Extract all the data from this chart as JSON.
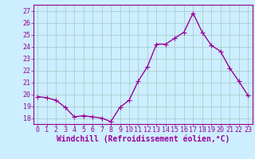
{
  "x": [
    0,
    1,
    2,
    3,
    4,
    5,
    6,
    7,
    8,
    9,
    10,
    11,
    12,
    13,
    14,
    15,
    16,
    17,
    18,
    19,
    20,
    21,
    22,
    23
  ],
  "y": [
    19.8,
    19.7,
    19.5,
    18.9,
    18.1,
    18.2,
    18.1,
    18.0,
    17.7,
    18.9,
    19.5,
    21.1,
    22.3,
    24.2,
    24.2,
    24.7,
    25.2,
    26.8,
    25.2,
    24.1,
    23.6,
    22.2,
    21.1,
    19.9
  ],
  "line_color": "#990099",
  "marker": "+",
  "marker_size": 4,
  "bg_color": "#cceeff",
  "grid_color": "#aacccc",
  "xlabel": "Windchill (Refroidissement éolien,°C)",
  "xlabel_color": "#990099",
  "tick_color": "#990099",
  "ylim": [
    17.5,
    27.5
  ],
  "xlim": [
    -0.5,
    23.5
  ],
  "yticks": [
    18,
    19,
    20,
    21,
    22,
    23,
    24,
    25,
    26,
    27
  ],
  "xticks": [
    0,
    1,
    2,
    3,
    4,
    5,
    6,
    7,
    8,
    9,
    10,
    11,
    12,
    13,
    14,
    15,
    16,
    17,
    18,
    19,
    20,
    21,
    22,
    23
  ],
  "tick_fontsize": 6,
  "xlabel_fontsize": 7,
  "line_width": 1.0,
  "marker_linewidth": 0.8
}
